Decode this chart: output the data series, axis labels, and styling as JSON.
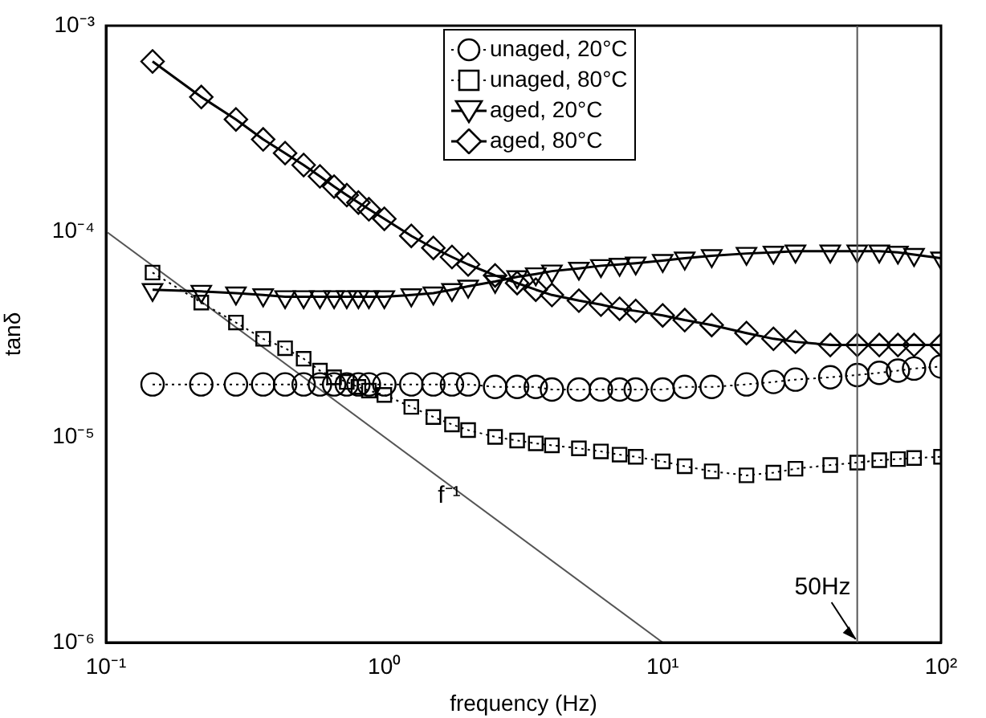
{
  "chart_data": {
    "type": "line",
    "xlabel": "frequency (Hz)",
    "ylabel": "tanδ",
    "log": "xy",
    "xlim": [
      0.1,
      100
    ],
    "ylim": [
      1e-06,
      0.001
    ],
    "xticks": [
      {
        "value": 0.1,
        "label": "10⁻¹"
      },
      {
        "value": 1,
        "label": "10⁰"
      },
      {
        "value": 10,
        "label": "10¹"
      },
      {
        "value": 100,
        "label": "10²"
      }
    ],
    "yticks": [
      {
        "value": 1e-06,
        "label": "10⁻⁶"
      },
      {
        "value": 1e-05,
        "label": "10⁻⁵"
      },
      {
        "value": 0.0001,
        "label": "10⁻⁴"
      },
      {
        "value": 0.001,
        "label": "10⁻³"
      }
    ],
    "grid": false,
    "legend": "top",
    "x": [
      0.147,
      0.22,
      0.293,
      0.367,
      0.44,
      0.513,
      0.587,
      0.66,
      0.733,
      0.807,
      0.88,
      1,
      1.25,
      1.5,
      1.75,
      2,
      2.5,
      3,
      3.5,
      4,
      5,
      6,
      7,
      8,
      10,
      12,
      15,
      20,
      25,
      30,
      40,
      50,
      60,
      70,
      80,
      100
    ],
    "series": [
      {
        "name": "unaged, 20°C",
        "color": "#000000",
        "marker": "circle",
        "line_style": "dotted",
        "values": [
          1.8e-05,
          1.8e-05,
          1.8e-05,
          1.8e-05,
          1.8e-05,
          1.8e-05,
          1.8e-05,
          1.8e-05,
          1.8e-05,
          1.8e-05,
          1.8e-05,
          1.8e-05,
          1.8e-05,
          1.8e-05,
          1.8e-05,
          1.8e-05,
          1.75e-05,
          1.75e-05,
          1.75e-05,
          1.7e-05,
          1.7e-05,
          1.7e-05,
          1.7e-05,
          1.7e-05,
          1.7e-05,
          1.75e-05,
          1.75e-05,
          1.8e-05,
          1.85e-05,
          1.9e-05,
          1.95e-05,
          2e-05,
          2.05e-05,
          2.1e-05,
          2.15e-05,
          2.2e-05
        ]
      },
      {
        "name": "unaged, 80°C",
        "color": "#000000",
        "marker": "square",
        "line_style": "dotted",
        "values": [
          6.3e-05,
          4.5e-05,
          3.6e-05,
          3e-05,
          2.7e-05,
          2.4e-05,
          2.1e-05,
          1.95e-05,
          1.85e-05,
          1.75e-05,
          1.68e-05,
          1.6e-05,
          1.4e-05,
          1.25e-05,
          1.15e-05,
          1.08e-05,
          1e-05,
          9.6e-06,
          9.3e-06,
          9.1e-06,
          8.8e-06,
          8.5e-06,
          8.2e-06,
          8e-06,
          7.6e-06,
          7.2e-06,
          6.8e-06,
          6.5e-06,
          6.7e-06,
          7e-06,
          7.3e-06,
          7.5e-06,
          7.7e-06,
          7.8e-06,
          7.9e-06,
          8e-06
        ]
      },
      {
        "name": "aged, 20°C",
        "color": "#000000",
        "marker": "triangle",
        "line_style": "solid",
        "values": [
          5.2e-05,
          5.1e-05,
          5e-05,
          4.9e-05,
          4.8e-05,
          4.8e-05,
          4.8e-05,
          4.8e-05,
          4.8e-05,
          4.8e-05,
          4.8e-05,
          4.8e-05,
          4.9e-05,
          5e-05,
          5.2e-05,
          5.4e-05,
          5.7e-05,
          6e-05,
          6.2e-05,
          6.4e-05,
          6.6e-05,
          6.8e-05,
          6.9e-05,
          7e-05,
          7.2e-05,
          7.4e-05,
          7.6e-05,
          7.8e-05,
          7.9e-05,
          8e-05,
          8e-05,
          8e-05,
          8e-05,
          7.9e-05,
          7.7e-05,
          7.4e-05
        ]
      },
      {
        "name": "aged, 80°C",
        "color": "#000000",
        "marker": "diamond",
        "line_style": "solid",
        "values": [
          0.00067,
          0.00045,
          0.00035,
          0.00028,
          0.00024,
          0.00021,
          0.000185,
          0.000165,
          0.00015,
          0.000138,
          0.000128,
          0.000115,
          9.5e-05,
          8.3e-05,
          7.5e-05,
          6.9e-05,
          6.1e-05,
          5.6e-05,
          5.2e-05,
          4.9e-05,
          4.6e-05,
          4.4e-05,
          4.2e-05,
          4.1e-05,
          3.9e-05,
          3.7e-05,
          3.5e-05,
          3.2e-05,
          3e-05,
          2.9e-05,
          2.8e-05,
          2.8e-05,
          2.8e-05,
          2.8e-05,
          2.8e-05,
          2.8e-05
        ]
      },
      {
        "type": "line",
        "color": "#555555",
        "marker": "none",
        "line_style": "solid",
        "x": [
          0.1,
          10
        ],
        "values": [
          0.0001,
          1e-06
        ]
      }
    ],
    "annotations": [
      "f⁻¹"
    ],
    "ref_lines": [
      {
        "axis": "x",
        "value": 50,
        "label": "50Hz",
        "color": "#555555"
      }
    ]
  }
}
